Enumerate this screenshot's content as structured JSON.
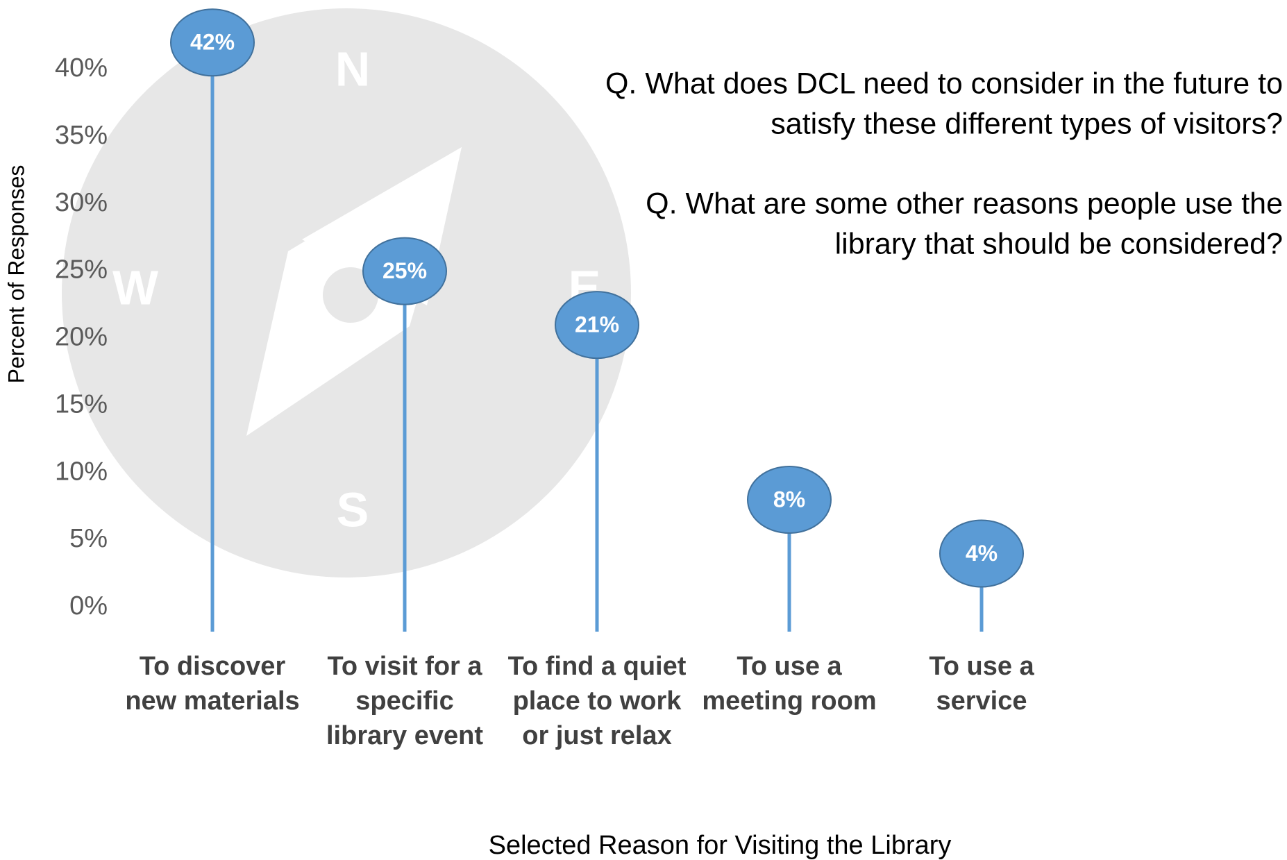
{
  "chart_data": {
    "type": "lollipop",
    "categories": [
      "To discover new materials",
      "To visit for a specific library event",
      "To find a quiet place to work or just relax",
      "To use a meeting room",
      "To use a service"
    ],
    "values": [
      42,
      25,
      21,
      8,
      4
    ],
    "value_labels": [
      "42%",
      "25%",
      "21%",
      "8%",
      "4%"
    ],
    "color": "#5b9bd5",
    "y_label": "Percent of Responses",
    "x_label": "Selected Reason for Visiting the Library",
    "ylim": [
      0,
      40
    ],
    "yticks": [
      {
        "value": 0,
        "label": "0%"
      },
      {
        "value": 5,
        "label": "5%"
      },
      {
        "value": 10,
        "label": "10%"
      },
      {
        "value": 15,
        "label": "15%"
      },
      {
        "value": 20,
        "label": "20%"
      },
      {
        "value": 25,
        "label": "25%"
      },
      {
        "value": 30,
        "label": "30%"
      },
      {
        "value": 35,
        "label": "35%"
      },
      {
        "value": 40,
        "label": "40%"
      }
    ],
    "grid": false,
    "annotations": [
      [
        "Q. What does DCL need to consider in the future to",
        "satisfy these different types of visitors?"
      ],
      [
        "Q. What are some other reasons people use the",
        "library that should be considered?"
      ]
    ],
    "compass": [
      "N",
      "E",
      "S",
      "W"
    ]
  }
}
